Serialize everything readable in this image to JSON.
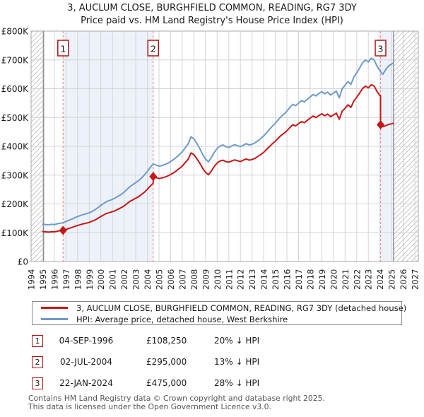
{
  "title": {
    "line1": "3, AUCLUM CLOSE, BURGHFIELD COMMON, READING, RG7 3DY",
    "line2": "Price paid vs. HM Land Registry's House Price Index (HPI)"
  },
  "colors": {
    "price_red": "#c41717",
    "hpi_blue": "#6e99cc",
    "sale_dash": "#f28b8b",
    "band_fill": "#edf2fa",
    "grid": "#d4d4d4",
    "plot_border": "#aaaaaa",
    "hatch_line": "#bbbbbb",
    "data_edge": "#666666",
    "marker_box_border": "#b11414",
    "footer_text": "#555555"
  },
  "chart_data": {
    "type": "line",
    "x_range": [
      1994,
      2027.3
    ],
    "x_ticks": [
      1994,
      1995,
      1996,
      1997,
      1998,
      1999,
      2000,
      2001,
      2002,
      2003,
      2004,
      2005,
      2006,
      2007,
      2008,
      2009,
      2010,
      2011,
      2012,
      2013,
      2014,
      2015,
      2016,
      2017,
      2018,
      2019,
      2020,
      2021,
      2022,
      2023,
      2024,
      2025,
      2026,
      2027
    ],
    "x_tick_labels": [
      "1994",
      "1995",
      "1996",
      "1997",
      "1998",
      "1999",
      "2000",
      "2001",
      "2002",
      "2003",
      "2004",
      "2005",
      "2006",
      "2007",
      "2008",
      "2009",
      "2010",
      "2011",
      "2012",
      "2013",
      "2014",
      "2015",
      "2016",
      "2017",
      "2018",
      "2019",
      "2020",
      "2021",
      "2022",
      "2023",
      "2024",
      "2025",
      "2026",
      "2027"
    ],
    "y_max_k": 800,
    "y_step_k": 100,
    "y_tick_labels": [
      "£0",
      "£100K",
      "£200K",
      "£300K",
      "£400K",
      "£500K",
      "£600K",
      "£700K",
      "£800K"
    ],
    "grid": true,
    "ylabel_units": "GBP",
    "shaded_bands": [
      [
        1996.75,
        2004.5
      ],
      [
        2024.05,
        2025.17
      ]
    ],
    "no_data_bands": [
      [
        1994,
        1995.08
      ],
      [
        2025.17,
        2027.3
      ]
    ],
    "data_edges": [
      1995.08,
      2025.17
    ],
    "series": [
      {
        "name": "HPI: Average price, detached house, West Berkshire",
        "color": "#6e99cc",
        "points_k": [
          [
            1995.0,
            130
          ],
          [
            1995.25,
            128
          ],
          [
            1995.5,
            127
          ],
          [
            1995.75,
            129
          ],
          [
            1996.0,
            128
          ],
          [
            1996.25,
            131
          ],
          [
            1996.5,
            133
          ],
          [
            1996.75,
            135
          ],
          [
            1997.0,
            139
          ],
          [
            1997.25,
            143
          ],
          [
            1997.5,
            147
          ],
          [
            1997.75,
            152
          ],
          [
            1998.0,
            156
          ],
          [
            1998.25,
            160
          ],
          [
            1998.5,
            163
          ],
          [
            1998.75,
            166
          ],
          [
            1999.0,
            169
          ],
          [
            1999.25,
            174
          ],
          [
            1999.5,
            180
          ],
          [
            1999.75,
            187
          ],
          [
            2000.0,
            195
          ],
          [
            2000.25,
            202
          ],
          [
            2000.5,
            208
          ],
          [
            2000.75,
            212
          ],
          [
            2001.0,
            216
          ],
          [
            2001.25,
            221
          ],
          [
            2001.5,
            227
          ],
          [
            2001.75,
            233
          ],
          [
            2002.0,
            241
          ],
          [
            2002.25,
            251
          ],
          [
            2002.5,
            260
          ],
          [
            2002.75,
            267
          ],
          [
            2003.0,
            274
          ],
          [
            2003.25,
            281
          ],
          [
            2003.5,
            290
          ],
          [
            2003.75,
            301
          ],
          [
            2004.0,
            313
          ],
          [
            2004.25,
            327
          ],
          [
            2004.5,
            339
          ],
          [
            2004.75,
            335
          ],
          [
            2005.0,
            331
          ],
          [
            2005.25,
            333
          ],
          [
            2005.5,
            337
          ],
          [
            2005.75,
            341
          ],
          [
            2006.0,
            347
          ],
          [
            2006.25,
            354
          ],
          [
            2006.5,
            362
          ],
          [
            2006.75,
            371
          ],
          [
            2007.0,
            381
          ],
          [
            2007.25,
            394
          ],
          [
            2007.5,
            408
          ],
          [
            2007.75,
            433
          ],
          [
            2008.0,
            426
          ],
          [
            2008.25,
            410
          ],
          [
            2008.5,
            393
          ],
          [
            2008.75,
            372
          ],
          [
            2009.0,
            356
          ],
          [
            2009.25,
            346
          ],
          [
            2009.5,
            361
          ],
          [
            2009.75,
            379
          ],
          [
            2010.0,
            393
          ],
          [
            2010.25,
            401
          ],
          [
            2010.5,
            405
          ],
          [
            2010.75,
            399
          ],
          [
            2011.0,
            396
          ],
          [
            2011.25,
            401
          ],
          [
            2011.5,
            406
          ],
          [
            2011.75,
            402
          ],
          [
            2012.0,
            399
          ],
          [
            2012.25,
            404
          ],
          [
            2012.5,
            409
          ],
          [
            2012.75,
            405
          ],
          [
            2013.0,
            407
          ],
          [
            2013.25,
            412
          ],
          [
            2013.5,
            419
          ],
          [
            2013.75,
            427
          ],
          [
            2014.0,
            436
          ],
          [
            2014.25,
            447
          ],
          [
            2014.5,
            459
          ],
          [
            2014.75,
            470
          ],
          [
            2015.0,
            480
          ],
          [
            2015.25,
            492
          ],
          [
            2015.5,
            503
          ],
          [
            2015.75,
            512
          ],
          [
            2016.0,
            522
          ],
          [
            2016.25,
            535
          ],
          [
            2016.5,
            546
          ],
          [
            2016.75,
            541
          ],
          [
            2017.0,
            550
          ],
          [
            2017.25,
            559
          ],
          [
            2017.5,
            554
          ],
          [
            2017.75,
            563
          ],
          [
            2018.0,
            572
          ],
          [
            2018.25,
            580
          ],
          [
            2018.5,
            575
          ],
          [
            2018.75,
            583
          ],
          [
            2019.0,
            590
          ],
          [
            2019.25,
            582
          ],
          [
            2019.5,
            588
          ],
          [
            2019.75,
            578
          ],
          [
            2020.0,
            585
          ],
          [
            2020.25,
            592
          ],
          [
            2020.5,
            568
          ],
          [
            2020.75,
            600
          ],
          [
            2021.0,
            612
          ],
          [
            2021.25,
            625
          ],
          [
            2021.5,
            615
          ],
          [
            2021.75,
            640
          ],
          [
            2022.0,
            655
          ],
          [
            2022.25,
            672
          ],
          [
            2022.5,
            690
          ],
          [
            2022.75,
            700
          ],
          [
            2023.0,
            693
          ],
          [
            2023.25,
            706
          ],
          [
            2023.5,
            700
          ],
          [
            2023.75,
            678
          ],
          [
            2024.0,
            662
          ],
          [
            2024.25,
            650
          ],
          [
            2024.5,
            667
          ],
          [
            2024.75,
            679
          ],
          [
            2025.0,
            686
          ],
          [
            2025.17,
            690
          ]
        ]
      },
      {
        "name": "3, AUCLUM CLOSE, BURGHFIELD COMMON, READING, RG7 3DY (detached house)",
        "color": "#c41717",
        "points_k": [
          [
            1995.0,
            104
          ],
          [
            1995.25,
            103
          ],
          [
            1995.5,
            102
          ],
          [
            1995.75,
            103
          ],
          [
            1996.0,
            103
          ],
          [
            1996.25,
            105
          ],
          [
            1996.5,
            107
          ],
          [
            1996.75,
            108
          ],
          [
            1997.0,
            111
          ],
          [
            1997.25,
            115
          ],
          [
            1997.5,
            118
          ],
          [
            1997.75,
            122
          ],
          [
            1998.0,
            125
          ],
          [
            1998.25,
            128
          ],
          [
            1998.5,
            131
          ],
          [
            1998.75,
            133
          ],
          [
            1999.0,
            136
          ],
          [
            1999.25,
            140
          ],
          [
            1999.5,
            144
          ],
          [
            1999.75,
            150
          ],
          [
            2000.0,
            156
          ],
          [
            2000.25,
            162
          ],
          [
            2000.5,
            167
          ],
          [
            2000.75,
            170
          ],
          [
            2001.0,
            173
          ],
          [
            2001.25,
            177
          ],
          [
            2001.5,
            182
          ],
          [
            2001.75,
            187
          ],
          [
            2002.0,
            193
          ],
          [
            2002.25,
            201
          ],
          [
            2002.5,
            209
          ],
          [
            2002.75,
            214
          ],
          [
            2003.0,
            220
          ],
          [
            2003.25,
            225
          ],
          [
            2003.5,
            233
          ],
          [
            2003.75,
            241
          ],
          [
            2004.0,
            251
          ],
          [
            2004.25,
            262
          ],
          [
            2004.5,
            272
          ],
          [
            2004.5,
            295
          ],
          [
            2004.75,
            291
          ],
          [
            2005.0,
            288
          ],
          [
            2005.25,
            290
          ],
          [
            2005.5,
            293
          ],
          [
            2005.75,
            297
          ],
          [
            2006.0,
            302
          ],
          [
            2006.25,
            308
          ],
          [
            2006.5,
            315
          ],
          [
            2006.75,
            323
          ],
          [
            2007.0,
            331
          ],
          [
            2007.25,
            343
          ],
          [
            2007.5,
            355
          ],
          [
            2007.75,
            377
          ],
          [
            2008.0,
            371
          ],
          [
            2008.25,
            357
          ],
          [
            2008.5,
            342
          ],
          [
            2008.75,
            324
          ],
          [
            2009.0,
            310
          ],
          [
            2009.25,
            301
          ],
          [
            2009.5,
            314
          ],
          [
            2009.75,
            330
          ],
          [
            2010.0,
            342
          ],
          [
            2010.25,
            349
          ],
          [
            2010.5,
            352
          ],
          [
            2010.75,
            347
          ],
          [
            2011.0,
            345
          ],
          [
            2011.25,
            349
          ],
          [
            2011.5,
            353
          ],
          [
            2011.75,
            350
          ],
          [
            2012.0,
            347
          ],
          [
            2012.25,
            352
          ],
          [
            2012.5,
            356
          ],
          [
            2012.75,
            352
          ],
          [
            2013.0,
            354
          ],
          [
            2013.25,
            358
          ],
          [
            2013.5,
            365
          ],
          [
            2013.75,
            371
          ],
          [
            2014.0,
            379
          ],
          [
            2014.25,
            389
          ],
          [
            2014.5,
            399
          ],
          [
            2014.75,
            409
          ],
          [
            2015.0,
            418
          ],
          [
            2015.25,
            428
          ],
          [
            2015.5,
            438
          ],
          [
            2015.75,
            445
          ],
          [
            2016.0,
            454
          ],
          [
            2016.25,
            465
          ],
          [
            2016.5,
            475
          ],
          [
            2016.75,
            471
          ],
          [
            2017.0,
            479
          ],
          [
            2017.25,
            486
          ],
          [
            2017.5,
            482
          ],
          [
            2017.75,
            490
          ],
          [
            2018.0,
            498
          ],
          [
            2018.25,
            505
          ],
          [
            2018.5,
            500
          ],
          [
            2018.75,
            507
          ],
          [
            2019.0,
            513
          ],
          [
            2019.25,
            506
          ],
          [
            2019.5,
            512
          ],
          [
            2019.75,
            503
          ],
          [
            2020.0,
            509
          ],
          [
            2020.25,
            515
          ],
          [
            2020.5,
            494
          ],
          [
            2020.75,
            522
          ],
          [
            2021.0,
            532
          ],
          [
            2021.25,
            544
          ],
          [
            2021.5,
            535
          ],
          [
            2021.75,
            557
          ],
          [
            2022.0,
            570
          ],
          [
            2022.25,
            585
          ],
          [
            2022.5,
            600
          ],
          [
            2022.75,
            609
          ],
          [
            2023.0,
            603
          ],
          [
            2023.25,
            614
          ],
          [
            2023.5,
            609
          ],
          [
            2023.75,
            590
          ],
          [
            2024.0,
            576
          ],
          [
            2024.05,
            576
          ],
          [
            2024.05,
            475
          ],
          [
            2024.25,
            468
          ],
          [
            2024.5,
            472
          ],
          [
            2024.75,
            476
          ],
          [
            2025.0,
            478
          ],
          [
            2025.17,
            480
          ]
        ]
      }
    ],
    "sales": [
      {
        "label": "1",
        "year": 1996.75,
        "price_k": 108,
        "date": "04-SEP-1996",
        "price_text": "£108,250",
        "vs_hpi": "20% ↓ HPI"
      },
      {
        "label": "2",
        "year": 2004.5,
        "price_k": 295,
        "date": "02-JUL-2004",
        "price_text": "£295,000",
        "vs_hpi": "13% ↓ HPI"
      },
      {
        "label": "3",
        "year": 2024.05,
        "price_k": 475,
        "date": "22-JAN-2024",
        "price_text": "£475,000",
        "vs_hpi": "28% ↓ HPI"
      }
    ]
  },
  "legend": {
    "items": [
      {
        "label": "3, AUCLUM CLOSE, BURGHFIELD COMMON, READING, RG7 3DY (detached house)",
        "color": "#c41717"
      },
      {
        "label": "HPI: Average price, detached house, West Berkshire",
        "color": "#6e99cc"
      }
    ]
  },
  "table": {
    "rows": [
      {
        "n": "1",
        "date": "04-SEP-1996",
        "price": "£108,250",
        "delta": "20% ↓ HPI"
      },
      {
        "n": "2",
        "date": "02-JUL-2004",
        "price": "£295,000",
        "delta": "13% ↓ HPI"
      },
      {
        "n": "3",
        "date": "22-JAN-2024",
        "price": "£475,000",
        "delta": "28% ↓ HPI"
      }
    ]
  },
  "footer": {
    "line1": "Contains HM Land Registry data © Crown copyright and database right 2025.",
    "line2": "This data is licensed under the Open Government Licence v3.0."
  }
}
